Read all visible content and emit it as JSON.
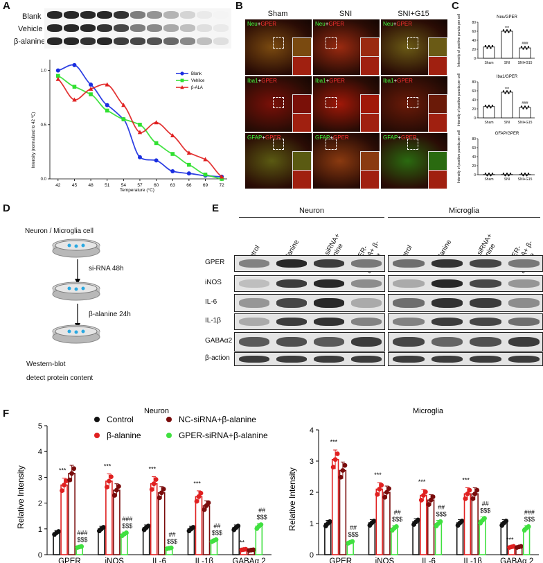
{
  "panels": {
    "a": "A",
    "b": "B",
    "c": "C",
    "d": "D",
    "e": "E",
    "f": "F"
  },
  "panelA": {
    "blot_rows": [
      "Blank",
      "Vehicle",
      "β-alanine"
    ],
    "chart": {
      "ylabel": "Intensity (normalized to 42 ℃)",
      "xlabel": "Temperature (°C)",
      "legend": [
        "Blank",
        "Vehilce",
        "β-ALA"
      ]
    }
  },
  "panelB": {
    "columns": [
      "Sham",
      "SNI",
      "SNI+G15"
    ],
    "rows": [
      {
        "marker": "Neu",
        "plus": "+",
        "target": "GPER"
      },
      {
        "marker": "Iba1",
        "plus": "+",
        "target": "GPER"
      },
      {
        "marker": "GFAP",
        "plus": "+",
        "target": "GPER"
      }
    ]
  },
  "panelC": {
    "ylabel": "Intensity of positive puncta per cell",
    "charts": [
      {
        "title": "Neu/GPER",
        "sig_sni": "***",
        "sig_g15": "###"
      },
      {
        "title": "Iba1/GPER",
        "sig_sni": "***",
        "sig_g15": "###"
      },
      {
        "title": "GFAP/GPER",
        "sig_sni": "",
        "sig_g15": ""
      }
    ],
    "groups": [
      "Sham",
      "SNI",
      "SNI+G15"
    ]
  },
  "panelD": {
    "title": "Neuron / Microglia cell",
    "step1": "si-RNA 48h",
    "step2": "β-alanine 24h",
    "result1": "Western-blot",
    "result2": "detect protein content"
  },
  "panelE": {
    "group_neuron": "Neuron",
    "group_microglia": "Microglia",
    "lanes": [
      "Control",
      "β-alanine",
      "NC-siRNA+ β-alanine",
      "GPER-siRNA+ β-alanine"
    ],
    "proteins": [
      "GPER",
      "iNOS",
      "IL-6",
      "IL-1β",
      "GABAα2",
      "β-action"
    ]
  },
  "panelF": {
    "ylabel": "Relative Intensity",
    "categories": [
      "GPER",
      "iNOS",
      "IL-6",
      "IL-1β",
      "GABAα 2"
    ],
    "legend": [
      "Control",
      "NC-siRNA+β-alanine",
      "β-alanine",
      "GPER-siRNA+β-alanine"
    ],
    "colors": {
      "control": "#111111",
      "bala": "#e02020",
      "nc": "#7a0c0c",
      "gper": "#40e040"
    }
  },
  "chart_data": [
    {
      "type": "scatter",
      "title": "",
      "xlabel": "Temperature (°C)",
      "ylabel": "Intensity (normalized to 42 ℃)",
      "x": [
        42,
        45,
        48,
        51,
        54,
        57,
        60,
        63,
        66,
        69,
        72
      ],
      "xlim": [
        40.5,
        73
      ],
      "ylim": [
        0,
        1.1
      ],
      "yticks": [
        0.0,
        0.5,
        1.0
      ],
      "series": [
        {
          "name": "Blank",
          "color": "#1a2ee0",
          "values": [
            1.0,
            1.05,
            0.87,
            0.68,
            0.55,
            0.2,
            0.17,
            0.07,
            0.05,
            0.03,
            0.02
          ]
        },
        {
          "name": "Vehilce",
          "color": "#30e030",
          "values": [
            0.95,
            0.85,
            0.78,
            0.63,
            0.55,
            0.5,
            0.33,
            0.23,
            0.13,
            0.04,
            0.0
          ]
        },
        {
          "name": "β-ALA",
          "color": "#e02020",
          "values": [
            0.92,
            0.73,
            0.83,
            0.87,
            0.68,
            0.43,
            0.52,
            0.4,
            0.24,
            0.18,
            0.02
          ]
        }
      ]
    },
    {
      "type": "bar",
      "title": "Neu/GPER",
      "categories": [
        "Sham",
        "SNI",
        "SNI+G15"
      ],
      "values": [
        25,
        60,
        23
      ],
      "ylim": [
        0,
        80
      ],
      "yticks": [
        0,
        20,
        40,
        60,
        80
      ]
    },
    {
      "type": "bar",
      "title": "Iba1/GPER",
      "categories": [
        "Sham",
        "SNI",
        "SNI+G15"
      ],
      "values": [
        25,
        57,
        23
      ],
      "ylim": [
        0,
        80
      ],
      "yticks": [
        0,
        20,
        40,
        60,
        80
      ]
    },
    {
      "type": "bar",
      "title": "GFAP/GPER",
      "categories": [
        "Sham",
        "SNI",
        "SNI+G15"
      ],
      "values": [
        0.5,
        0.5,
        0.5
      ],
      "ylim": [
        0,
        80
      ],
      "yticks": [
        0,
        20,
        40,
        60,
        80
      ]
    },
    {
      "type": "bar",
      "title": "Neuron",
      "categories": [
        "GPER",
        "iNOS",
        "IL-6",
        "IL-1β",
        "GABAα 2"
      ],
      "ylabel": "Relative Intensity",
      "ylim": [
        0,
        5
      ],
      "yticks": [
        0,
        1,
        2,
        3,
        4,
        5
      ],
      "series": [
        {
          "name": "Control",
          "values": [
            0.85,
            1.0,
            1.05,
            1.0,
            1.05
          ]
        },
        {
          "name": "β-alanine",
          "values": [
            2.7,
            2.85,
            2.75,
            2.25,
            0.2
          ]
        },
        {
          "name": "NC-siRNA+β-alanine",
          "values": [
            3.15,
            2.5,
            2.4,
            1.9,
            0.18
          ]
        },
        {
          "name": "GPER-siRNA+β-alanine",
          "values": [
            0.3,
            0.8,
            0.25,
            0.55,
            1.1
          ]
        }
      ],
      "annotations": [
        {
          "category": "GPER",
          "labels": [
            "***",
            "###",
            "$$$"
          ]
        },
        {
          "category": "iNOS",
          "labels": [
            "***",
            "###",
            "$$$"
          ]
        },
        {
          "category": "IL-6",
          "labels": [
            "***",
            "##",
            "$$$"
          ]
        },
        {
          "category": "IL-1β",
          "labels": [
            "***",
            "##",
            "$$$"
          ]
        },
        {
          "category": "GABAα 2",
          "labels": [
            "**",
            "##",
            "$$$"
          ]
        }
      ]
    },
    {
      "type": "bar",
      "title": "Microglia",
      "categories": [
        "GPER",
        "iNOS",
        "IL-6",
        "IL-1β",
        "GABAα 2"
      ],
      "ylabel": "Relative Intensity",
      "ylim": [
        0,
        4
      ],
      "yticks": [
        0,
        1,
        2,
        3,
        4
      ],
      "series": [
        {
          "name": "Control",
          "values": [
            1.0,
            1.02,
            1.05,
            1.02,
            1.02
          ]
        },
        {
          "name": "β-alanine",
          "values": [
            3.05,
            2.1,
            1.9,
            1.95,
            0.25
          ]
        },
        {
          "name": "NC-siRNA+β-alanine",
          "values": [
            2.7,
            2.0,
            1.75,
            1.95,
            0.25
          ]
        },
        {
          "name": "GPER-siRNA+β-alanine",
          "values": [
            0.4,
            0.85,
            1.0,
            1.1,
            0.85
          ]
        }
      ],
      "annotations": [
        {
          "category": "GPER",
          "labels": [
            "***",
            "##",
            "$$$"
          ]
        },
        {
          "category": "iNOS",
          "labels": [
            "***",
            "##",
            "$$$"
          ]
        },
        {
          "category": "IL-6",
          "labels": [
            "***",
            "##",
            "$$$"
          ]
        },
        {
          "category": "IL-1β",
          "labels": [
            "***",
            "##",
            "$$$"
          ]
        },
        {
          "category": "GABAα 2",
          "labels": [
            "***",
            "###",
            "$$$"
          ]
        }
      ]
    }
  ]
}
